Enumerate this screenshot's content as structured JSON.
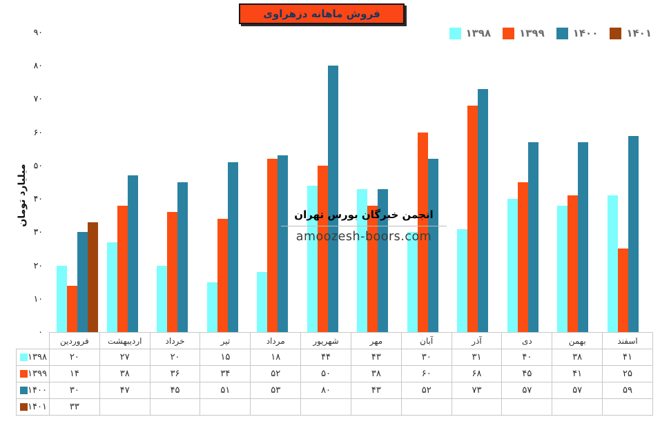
{
  "title": "فروش ماهانه دزهراوی",
  "watermark": {
    "line1": "انجمن خبرگان بورس تهران",
    "line2": "amoozesh-boors.com"
  },
  "chart_data": {
    "type": "bar",
    "title": "فروش ماهانه دزهراوی",
    "xlabel": "",
    "ylabel": "میلیارد تومان",
    "ylim": [
      0,
      90
    ],
    "grid": false,
    "legend_position": "top-right",
    "categories": [
      "فروردین",
      "اردیبهشت",
      "خرداد",
      "تیر",
      "مرداد",
      "شهریور",
      "مهر",
      "آبان",
      "آذر",
      "دی",
      "بهمن",
      "اسفند"
    ],
    "y_ticks": [
      {
        "value": 0,
        "label": "۰"
      },
      {
        "value": 10,
        "label": "۱۰"
      },
      {
        "value": 20,
        "label": "۲۰"
      },
      {
        "value": 30,
        "label": "۳۰"
      },
      {
        "value": 40,
        "label": "۴۰"
      },
      {
        "value": 50,
        "label": "۵۰"
      },
      {
        "value": 60,
        "label": "۶۰"
      },
      {
        "value": 70,
        "label": "۷۰"
      },
      {
        "value": 80,
        "label": "۸۰"
      },
      {
        "value": 90,
        "label": "۹۰"
      }
    ],
    "series": [
      {
        "name": "۱۳۹۸",
        "color": "#7DFDFD",
        "values": [
          20,
          27,
          20,
          15,
          18,
          44,
          43,
          30,
          31,
          40,
          38,
          41
        ],
        "display": [
          "۲۰",
          "۲۷",
          "۲۰",
          "۱۵",
          "۱۸",
          "۴۴",
          "۴۳",
          "۳۰",
          "۳۱",
          "۴۰",
          "۳۸",
          "۴۱"
        ]
      },
      {
        "name": "۱۳۹۹",
        "color": "#FC4E12",
        "values": [
          14,
          38,
          36,
          34,
          52,
          50,
          38,
          60,
          68,
          45,
          41,
          25
        ],
        "display": [
          "۱۴",
          "۳۸",
          "۳۶",
          "۳۴",
          "۵۲",
          "۵۰",
          "۳۸",
          "۶۰",
          "۶۸",
          "۴۵",
          "۴۱",
          "۲۵"
        ]
      },
      {
        "name": "۱۴۰۰",
        "color": "#2A82A0",
        "values": [
          30,
          47,
          45,
          51,
          53,
          80,
          43,
          52,
          73,
          57,
          57,
          59
        ],
        "display": [
          "۳۰",
          "۴۷",
          "۴۵",
          "۵۱",
          "۵۳",
          "۸۰",
          "۴۳",
          "۵۲",
          "۷۳",
          "۵۷",
          "۵۷",
          "۵۹"
        ]
      },
      {
        "name": "۱۴۰۱",
        "color": "#A0440E",
        "values": [
          33,
          null,
          null,
          null,
          null,
          null,
          null,
          null,
          null,
          null,
          null,
          null
        ],
        "display": [
          "۳۳",
          "",
          "",
          "",
          "",
          "",
          "",
          "",
          "",
          "",
          "",
          ""
        ]
      }
    ]
  }
}
